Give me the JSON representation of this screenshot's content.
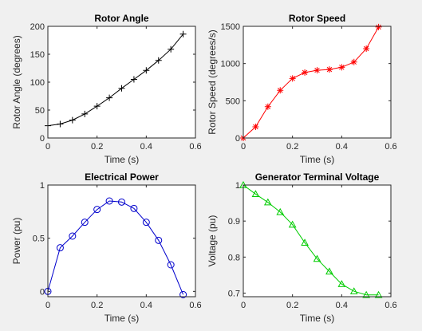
{
  "chart_data": [
    {
      "type": "line",
      "title": "Rotor Angle",
      "xlabel": "Time (s)",
      "ylabel": "Rotor Angle (degrees)",
      "xlim": [
        0,
        0.6
      ],
      "ylim": [
        0,
        200
      ],
      "xticks": [
        0,
        0.2,
        0.4,
        0.6
      ],
      "xtick_labels": [
        "0",
        "0.2",
        "0.4",
        "0.6"
      ],
      "yticks": [
        0,
        50,
        100,
        150,
        200
      ],
      "ytick_labels": [
        "0",
        "50",
        "100",
        "150",
        "200"
      ],
      "color": "#000000",
      "marker": "plus",
      "series": [
        {
          "x": [
            0,
            0.05,
            0.1,
            0.15,
            0.2,
            0.25,
            0.3,
            0.35,
            0.4,
            0.45,
            0.5,
            0.55
          ],
          "y": [
            22,
            25,
            32,
            43,
            57,
            72,
            89,
            105,
            121,
            139,
            159,
            186
          ]
        }
      ]
    },
    {
      "type": "line",
      "title": "Rotor Speed",
      "xlabel": "Time (s)",
      "ylabel": "Rotor Speed (degrees/s)",
      "xlim": [
        0,
        0.6
      ],
      "ylim": [
        0,
        1500
      ],
      "xticks": [
        0,
        0.2,
        0.4,
        0.6
      ],
      "xtick_labels": [
        "0",
        "0.2",
        "0.4",
        "0.6"
      ],
      "yticks": [
        0,
        500,
        1000,
        1500
      ],
      "ytick_labels": [
        "0",
        "500",
        "1000",
        "1500"
      ],
      "color": "#ff0000",
      "marker": "asterisk",
      "series": [
        {
          "x": [
            0,
            0.05,
            0.1,
            0.15,
            0.2,
            0.25,
            0.3,
            0.35,
            0.4,
            0.45,
            0.5,
            0.55
          ],
          "y": [
            0,
            150,
            420,
            640,
            800,
            880,
            910,
            920,
            950,
            1020,
            1200,
            1490
          ]
        }
      ]
    },
    {
      "type": "line",
      "title": "Electrical Power",
      "xlabel": "Time (s)",
      "ylabel": "Power (pu)",
      "xlim": [
        0,
        0.6
      ],
      "ylim": [
        -0.05,
        1
      ],
      "xticks": [
        0,
        0.2,
        0.4,
        0.6
      ],
      "xtick_labels": [
        "0",
        "0.2",
        "0.4",
        "0.6"
      ],
      "yticks": [
        0,
        0.5,
        1
      ],
      "ytick_labels": [
        "0",
        "0.5",
        "1"
      ],
      "color": "#0000cc",
      "marker": "circle",
      "series": [
        {
          "x": [
            0,
            0.05,
            0.1,
            0.15,
            0.2,
            0.25,
            0.3,
            0.35,
            0.4,
            0.45,
            0.5,
            0.55
          ],
          "y": [
            0.0,
            0.41,
            0.52,
            0.65,
            0.77,
            0.85,
            0.84,
            0.78,
            0.65,
            0.48,
            0.25,
            -0.03
          ]
        }
      ]
    },
    {
      "type": "line",
      "title": "Generator Terminal Voltage",
      "xlabel": "Time (s)",
      "ylabel": "Voltage (pu)",
      "xlim": [
        0,
        0.6
      ],
      "ylim": [
        0.69,
        1.0
      ],
      "xticks": [
        0,
        0.2,
        0.4,
        0.6
      ],
      "xtick_labels": [
        "0",
        "0.2",
        "0.4",
        "0.6"
      ],
      "yticks": [
        0.7,
        0.8,
        0.9,
        1
      ],
      "ytick_labels": [
        "0.7",
        "0.8",
        "0.9",
        "1"
      ],
      "color": "#00cc00",
      "marker": "triangle",
      "series": [
        {
          "x": [
            0,
            0.05,
            0.1,
            0.15,
            0.2,
            0.25,
            0.3,
            0.35,
            0.4,
            0.45,
            0.5,
            0.55
          ],
          "y": [
            1.0,
            0.975,
            0.952,
            0.925,
            0.89,
            0.84,
            0.795,
            0.76,
            0.725,
            0.705,
            0.695,
            0.695
          ]
        }
      ]
    }
  ]
}
